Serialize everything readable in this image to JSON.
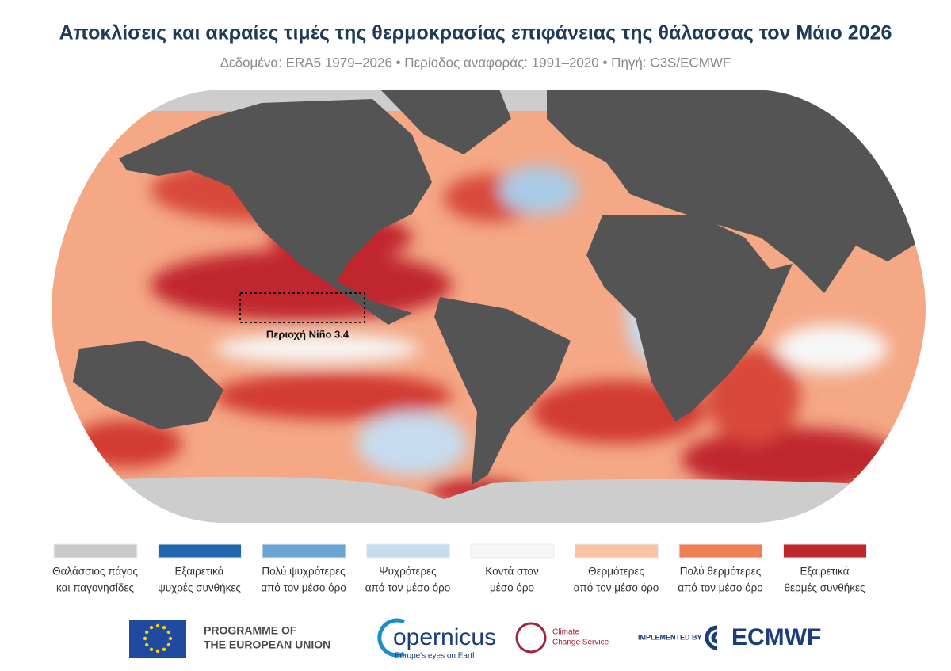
{
  "header": {
    "title": "Αποκλίσεις και ακραίες τιμές της θερμοκρασίας επιφάνειας της θάλασσας τον Μάιο 2026",
    "subtitle": "Δεδομένα: ERA5 1979–2026 • Περίοδος αναφοράς: 1991–2020 • Πηγή: C3S/ECMWF"
  },
  "map": {
    "annotation": "Περιοχή Niño 3.4"
  },
  "legend": [
    {
      "color": "#c9c9c9",
      "lines": [
        "Θαλάσσιος πάγος",
        "και παγονησίδες"
      ]
    },
    {
      "color": "#2166ac",
      "lines": [
        "Εξαιρετικά",
        "ψυχρές συνθήκες"
      ]
    },
    {
      "color": "#6aa5d4",
      "lines": [
        "Πολύ ψυχρότερες",
        "από τον μέσο όρο"
      ]
    },
    {
      "color": "#c6dcef",
      "lines": [
        "Ψυχρότερες",
        "από τον μέσο όρο"
      ]
    },
    {
      "color": "#f7f7f7",
      "lines": [
        "Κοντά στον",
        "μέσο όρο"
      ]
    },
    {
      "color": "#f9c3a4",
      "lines": [
        "Θερμότερες",
        "από τον μέσο όρο"
      ]
    },
    {
      "color": "#ef7f55",
      "lines": [
        "Πολύ θερμότερες",
        "από τον μέσο όρο"
      ]
    },
    {
      "color": "#c0272d",
      "lines": [
        "Εξαιρετικά",
        "θερμές συνθήκες"
      ]
    }
  ],
  "logos": {
    "eu": [
      "PROGRAMME OF",
      "THE EUROPEAN UNION"
    ],
    "copernicus": "opernicus",
    "copernicus_tagline": "Europe's eyes on Earth",
    "c3s": [
      "Climate",
      "Change Service"
    ],
    "implemented": "IMPLEMENTED BY",
    "ecmwf": "ECMWF"
  }
}
